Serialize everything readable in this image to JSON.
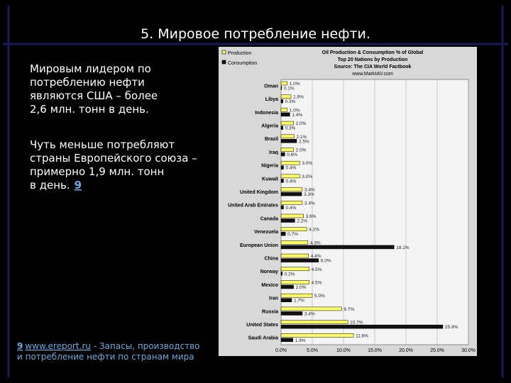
{
  "slide": {
    "title": "5. Мировое потребление нефти.",
    "paragraph1": [
      "Мировым лидером по",
      "потреблению нефти",
      "являются США – более",
      "2,6 млн. тонн в день."
    ],
    "paragraph2": [
      "Чуть меньше потребляют",
      "страны Европейского союза –",
      "примерно 1,9 млн. тонн",
      "в день."
    ],
    "ref": "9",
    "footnote": {
      "ref": "9",
      "link": "www.ereport.ru",
      "text": " - Запасы, производство",
      "text2": "и потребление нефти по странам мира"
    }
  },
  "chart_data": {
    "type": "bar",
    "orientation": "horizontal",
    "title": "Oil Production & Consumption % of Global",
    "subtitle": "Top 20 Nations by Production",
    "source": "Source: The CIA World Factbook",
    "website": "www.MarkIAV.com",
    "categories": [
      "Oman",
      "Libya",
      "Indonesia",
      "Algeria",
      "Brazil",
      "Iraq",
      "Nigeria",
      "Kuwait",
      "United Kingdom",
      "United Arab Emirates",
      "Canada",
      "Venezuela",
      "European Union",
      "China",
      "Norway",
      "Mexico",
      "Iran",
      "Russia",
      "United States",
      "Saudi Arabia"
    ],
    "series": [
      {
        "name": "Production",
        "color": "#ffff66",
        "values": [
          1.0,
          1.6,
          1.0,
          2.0,
          2.1,
          2.0,
          3.0,
          3.0,
          3.4,
          3.4,
          3.6,
          4.1,
          4.3,
          4.4,
          4.5,
          4.5,
          5.0,
          9.7,
          10.7,
          11.6
        ],
        "value_labels": [
          "1.0%",
          "1.6%",
          "1.0%",
          "2.0%",
          "2.1%",
          "2.0%",
          "3.0%",
          "3.0%",
          "3.4%",
          "3.4%",
          "3.6%",
          "4.1%",
          "4.3%",
          "4.4%",
          "4.5%",
          "4.5%",
          "5.0%",
          "9.7%",
          "10.7%",
          "11.6%"
        ]
      },
      {
        "name": "Consumption",
        "color": "#111111",
        "values": [
          0.1,
          0.3,
          1.4,
          0.3,
          2.5,
          0.6,
          0.4,
          0.4,
          3.3,
          0.4,
          2.2,
          0.7,
          18.1,
          6.0,
          0.2,
          2.0,
          1.7,
          3.4,
          25.9,
          1.9
        ],
        "value_labels": [
          "0.1%",
          "0.3%",
          "1.4%",
          "0.3%",
          "2.5%",
          "0.6%",
          "0.4%",
          "0.4%",
          "3.3%",
          "0.4%",
          "2.2%",
          "0.7%",
          "18.1%",
          "6.0%",
          "0.2%",
          "2.0%",
          "1.7%",
          "3.4%",
          "25.9%",
          "1.9%"
        ]
      }
    ],
    "xlim": [
      0,
      30
    ],
    "xticks": [
      {
        "value": 0,
        "label": "0.0%"
      },
      {
        "value": 5,
        "label": "5.0%"
      },
      {
        "value": 10,
        "label": "10.0%"
      },
      {
        "value": 15,
        "label": "15.0%"
      },
      {
        "value": 20,
        "label": "20.0%"
      },
      {
        "value": 25,
        "label": "25.0%"
      },
      {
        "value": 30,
        "label": "30.0%"
      }
    ],
    "grid": true,
    "legend": "top-left"
  }
}
